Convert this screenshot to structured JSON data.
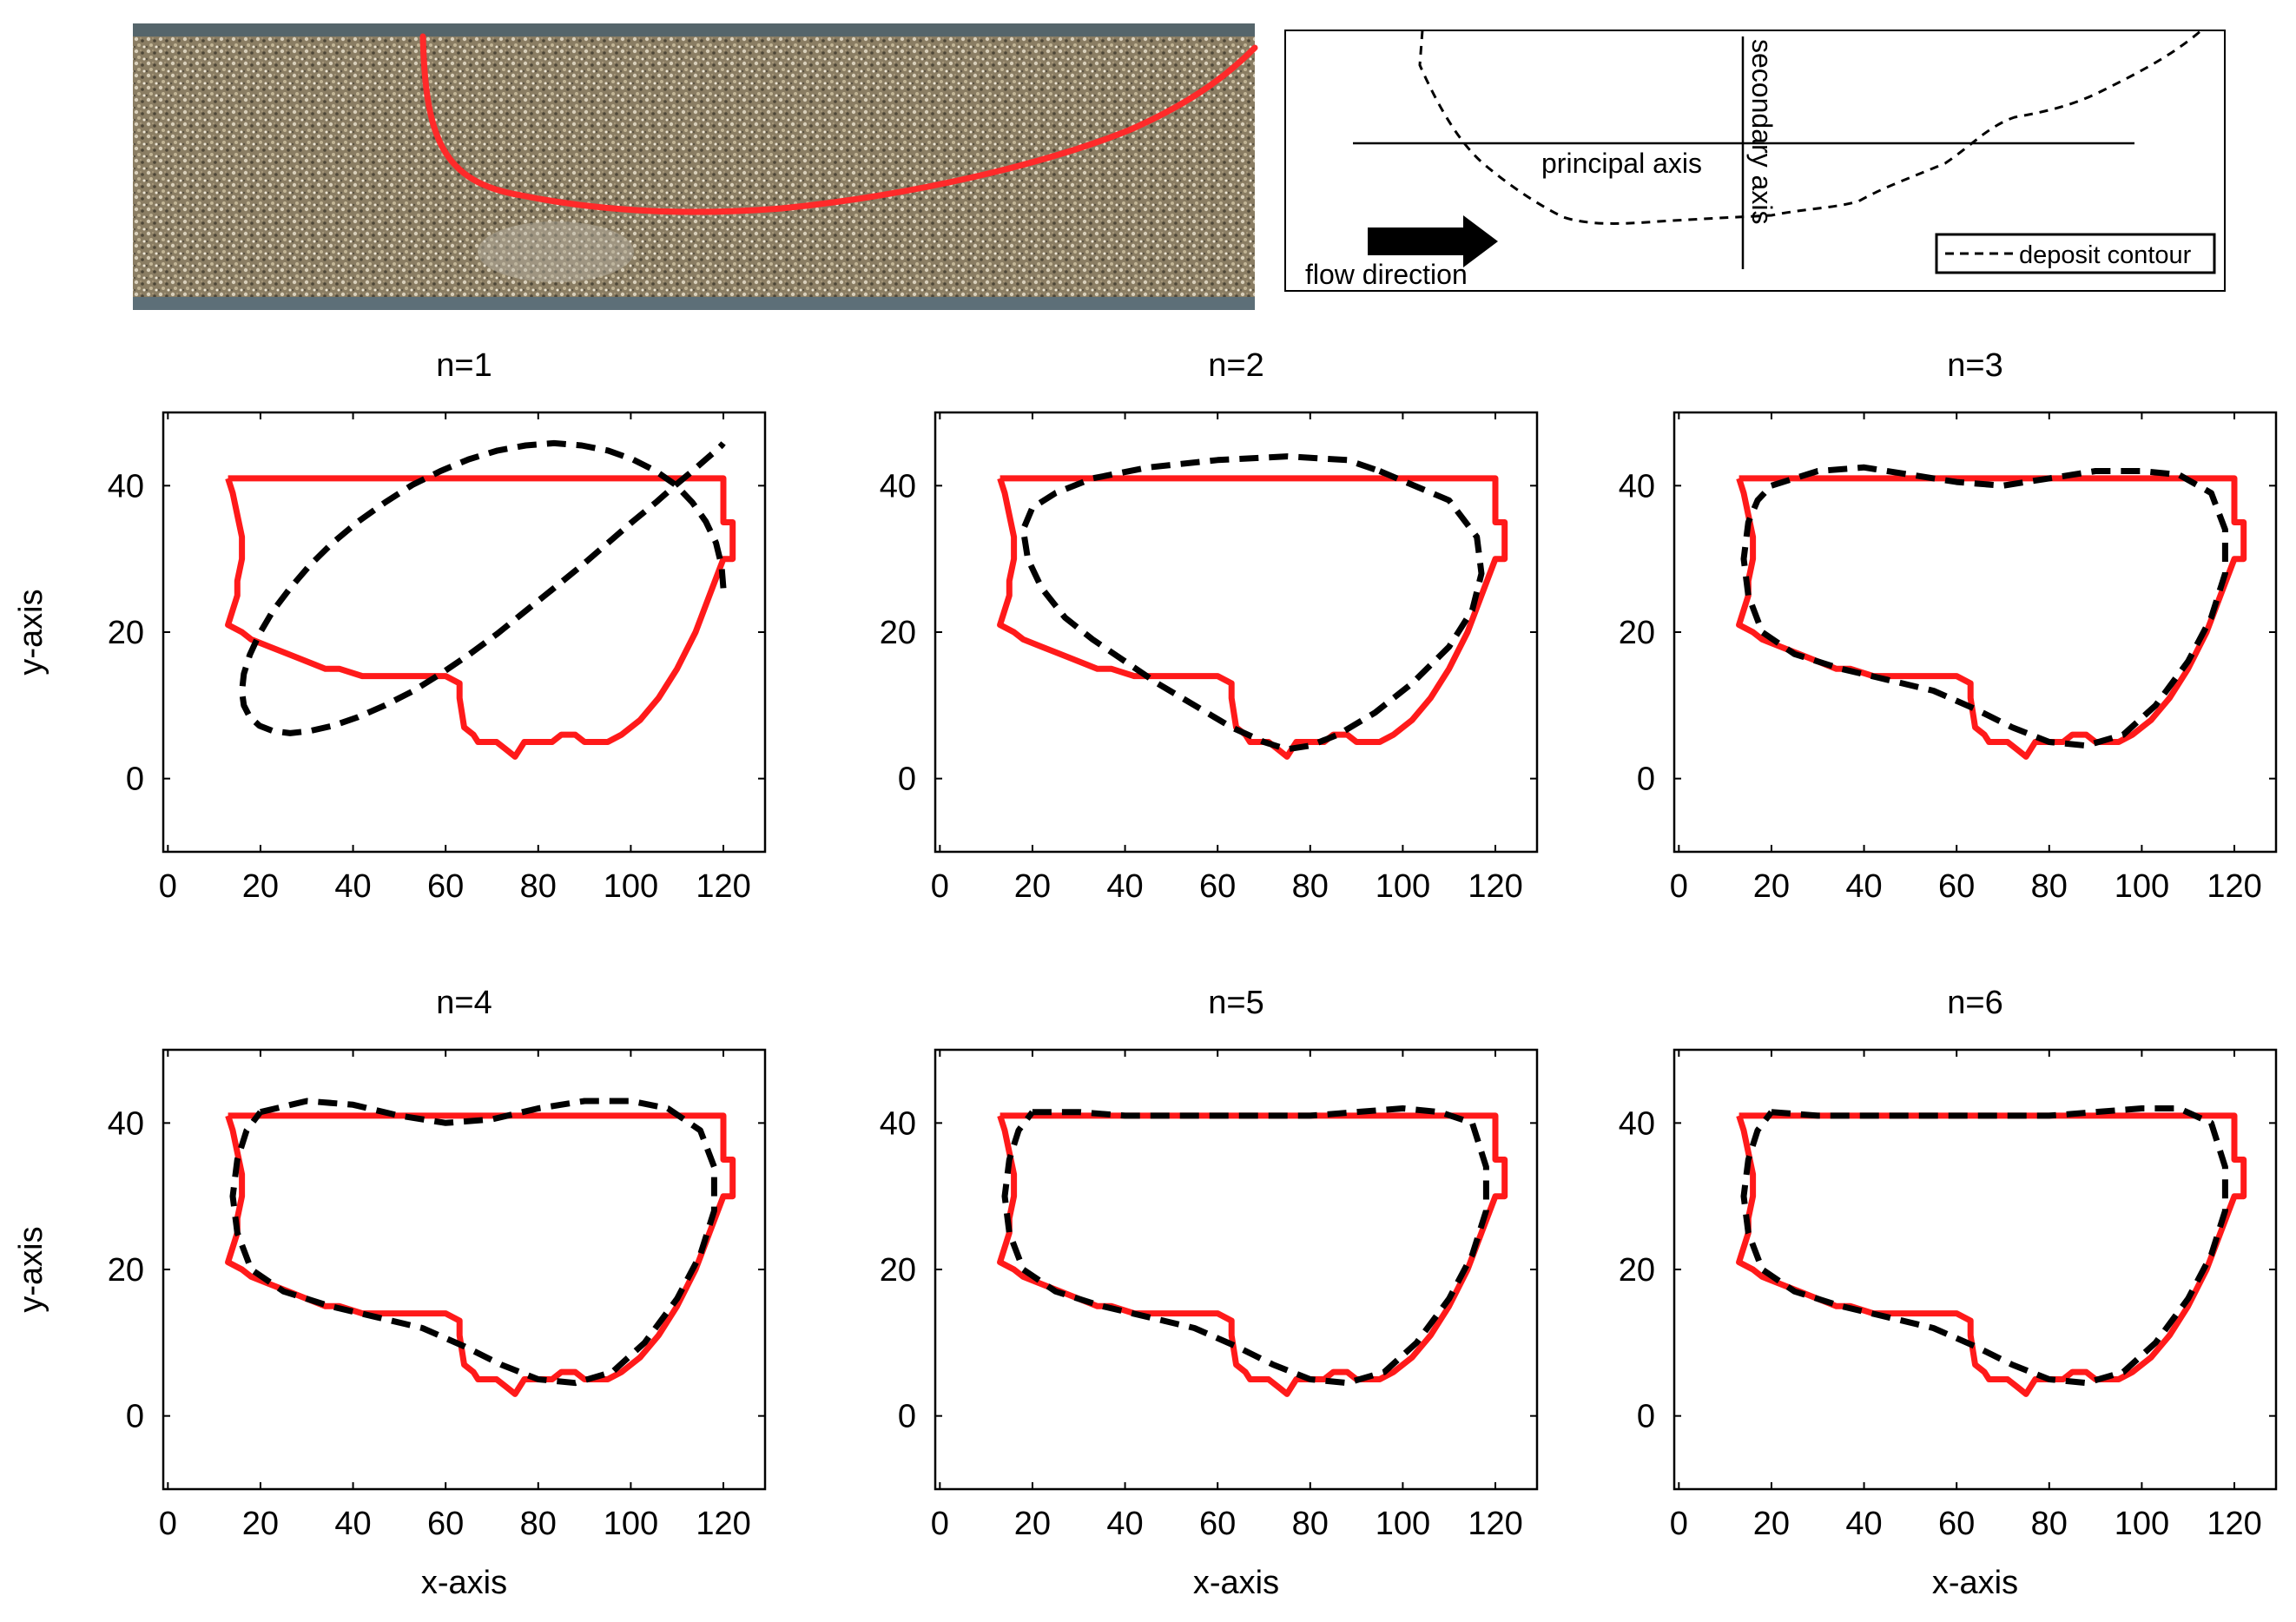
{
  "schematic": {
    "principal_axis_label": "principal axis",
    "secondary_axis_label": "secondary axis",
    "flow_label": "flow direction",
    "legend_label": "deposit contour"
  },
  "panel_titles": [
    "n=1",
    "n=2",
    "n=3",
    "n=4",
    "n=5",
    "n=6"
  ],
  "axes": {
    "xlabel": "x-axis",
    "ylabel": "y-axis",
    "x_ticks": [
      "0",
      "20",
      "40",
      "60",
      "80",
      "100",
      "120"
    ],
    "y_ticks": [
      "0",
      "20",
      "40"
    ]
  },
  "colors": {
    "deposit": "#ff1a1a",
    "fit": "#000000",
    "photo_contour": "#ff2a2a"
  },
  "chart_data": [
    {
      "type": "line",
      "title": "n=1",
      "xlabel": "",
      "ylabel": "y-axis",
      "xlim": [
        -1,
        129
      ],
      "ylim": [
        -10,
        50
      ],
      "grid": false,
      "series": [
        {
          "style": "solid-red",
          "x": [
            13,
            120,
            120,
            122,
            122,
            120,
            117,
            114,
            110,
            106,
            102,
            98,
            95,
            90,
            88,
            85,
            83,
            80,
            77,
            76,
            75,
            73,
            71,
            69,
            67,
            66,
            64,
            63,
            63,
            60,
            56,
            52,
            47,
            42,
            37,
            34,
            30,
            26,
            22,
            18,
            16,
            13,
            15,
            15,
            16,
            16,
            15,
            14,
            13
          ],
          "y": [
            41,
            41,
            35,
            35,
            30,
            30,
            25,
            20,
            15,
            11,
            8,
            6,
            5,
            5,
            6,
            6,
            5,
            5,
            5,
            4,
            3,
            4,
            5,
            5,
            5,
            6,
            7,
            11,
            13,
            14,
            14,
            14,
            14,
            14,
            15,
            15,
            16,
            17,
            18,
            19,
            20,
            21,
            25,
            27,
            30,
            33,
            36,
            39,
            41
          ]
        },
        {
          "style": "dashed-black",
          "x": [
            120,
            119.6,
            118.4,
            116.2,
            113.3,
            109.7,
            105.4,
            100.4,
            95.1,
            89.4,
            83.4,
            77.3,
            71.2,
            65,
            58.9,
            52.8,
            46.9,
            41.1,
            35.6,
            30.6,
            26.4,
            22.7,
            19.8,
            17.7,
            16.4,
            16,
            16.4,
            17.7,
            19.8,
            22.7,
            26.4,
            30.6,
            35.6,
            41.1,
            46.9,
            52.8,
            58.9,
            65,
            71.2,
            77.3,
            83.4,
            89.4,
            95.1,
            100.4,
            105.4,
            109.7,
            113.3,
            116.2,
            118.4,
            119.6,
            120
          ],
          "y": [
            26,
            29.1,
            32.2,
            35.1,
            37.7,
            40.1,
            42,
            43.6,
            44.8,
            45.5,
            45.8,
            45.5,
            44.8,
            43.6,
            42,
            40.1,
            37.7,
            35.1,
            32.2,
            29.1,
            26,
            22.9,
            19.8,
            16.9,
            14.3,
            11.9,
            10,
            8.4,
            7.2,
            6.5,
            6.2,
            6.5,
            7.2,
            8.4,
            10,
            11.9,
            14.3,
            16.9,
            19.8,
            22.9,
            26,
            29.1,
            32.2,
            35.1,
            37.7,
            40.1,
            42,
            43.6,
            44.8,
            45.5,
            45.8
          ]
        }
      ]
    },
    {
      "type": "line",
      "title": "n=2",
      "xlabel": "",
      "ylabel": "",
      "xlim": [
        -1,
        129
      ],
      "ylim": [
        -10,
        50
      ],
      "grid": false,
      "series": [
        {
          "style": "solid-red",
          "x": [
            13,
            120,
            120,
            122,
            122,
            120,
            117,
            114,
            110,
            106,
            102,
            98,
            95,
            90,
            88,
            85,
            83,
            80,
            77,
            76,
            75,
            73,
            71,
            69,
            67,
            66,
            64,
            63,
            63,
            60,
            56,
            52,
            47,
            42,
            37,
            34,
            30,
            26,
            22,
            18,
            16,
            13,
            15,
            15,
            16,
            16,
            15,
            14,
            13
          ],
          "y": [
            41,
            41,
            35,
            35,
            30,
            30,
            25,
            20,
            15,
            11,
            8,
            6,
            5,
            5,
            6,
            6,
            5,
            5,
            5,
            4,
            3,
            4,
            5,
            5,
            5,
            6,
            7,
            11,
            13,
            14,
            14,
            14,
            14,
            14,
            15,
            15,
            16,
            17,
            18,
            19,
            20,
            21,
            25,
            27,
            30,
            33,
            36,
            39,
            41
          ]
        },
        {
          "style": "dashed-black",
          "x": [
            95,
            110,
            116,
            117,
            115,
            110,
            102,
            94,
            86,
            80,
            75,
            70,
            63,
            55,
            47,
            40,
            33,
            27,
            22,
            19,
            18,
            20,
            25,
            33,
            45,
            60,
            75,
            88,
            95
          ],
          "y": [
            42,
            38,
            33,
            28,
            23,
            18,
            13,
            9,
            6,
            4.5,
            4,
            5,
            7,
            10,
            13,
            16,
            19,
            22,
            26,
            30,
            34,
            37,
            39,
            41,
            42.5,
            43.5,
            44,
            43.5,
            42
          ]
        }
      ]
    },
    {
      "type": "line",
      "title": "n=3",
      "xlabel": "",
      "ylabel": "",
      "xlim": [
        -1,
        129
      ],
      "ylim": [
        -10,
        50
      ],
      "grid": false,
      "series": [
        {
          "style": "solid-red",
          "x": [
            13,
            120,
            120,
            122,
            122,
            120,
            117,
            114,
            110,
            106,
            102,
            98,
            95,
            90,
            88,
            85,
            83,
            80,
            77,
            76,
            75,
            73,
            71,
            69,
            67,
            66,
            64,
            63,
            63,
            60,
            56,
            52,
            47,
            42,
            37,
            34,
            30,
            26,
            22,
            18,
            16,
            13,
            15,
            15,
            16,
            16,
            15,
            14,
            13
          ],
          "y": [
            41,
            41,
            35,
            35,
            30,
            30,
            25,
            20,
            15,
            11,
            8,
            6,
            5,
            5,
            6,
            6,
            5,
            5,
            5,
            4,
            3,
            4,
            5,
            5,
            5,
            6,
            7,
            11,
            13,
            14,
            14,
            14,
            14,
            14,
            15,
            15,
            16,
            17,
            18,
            19,
            20,
            21,
            25,
            27,
            30,
            33,
            36,
            39,
            41
          ]
        },
        {
          "style": "dashed-black",
          "x": [
            20,
            30,
            40,
            50,
            60,
            70,
            80,
            90,
            100,
            108,
            115,
            118,
            118,
            115,
            110,
            103,
            96,
            88,
            80,
            72,
            64,
            55,
            45,
            35,
            25,
            18,
            15,
            14,
            15,
            17,
            20
          ],
          "y": [
            40,
            42,
            42.5,
            41.5,
            40.5,
            40,
            41,
            42,
            42,
            41.5,
            39,
            34,
            28,
            22,
            16,
            10,
            6,
            4.5,
            5,
            7,
            9.5,
            12,
            13.5,
            15,
            17,
            20,
            25,
            30,
            35,
            38,
            40
          ]
        }
      ]
    },
    {
      "type": "line",
      "title": "n=4",
      "xlabel": "x-axis",
      "ylabel": "y-axis",
      "xlim": [
        -1,
        129
      ],
      "ylim": [
        -10,
        50
      ],
      "grid": false,
      "series": [
        {
          "style": "solid-red",
          "x": [
            13,
            120,
            120,
            122,
            122,
            120,
            117,
            114,
            110,
            106,
            102,
            98,
            95,
            90,
            88,
            85,
            83,
            80,
            77,
            76,
            75,
            73,
            71,
            69,
            67,
            66,
            64,
            63,
            63,
            60,
            56,
            52,
            47,
            42,
            37,
            34,
            30,
            26,
            22,
            18,
            16,
            13,
            15,
            15,
            16,
            16,
            15,
            14,
            13
          ],
          "y": [
            41,
            41,
            35,
            35,
            30,
            30,
            25,
            20,
            15,
            11,
            8,
            6,
            5,
            5,
            6,
            6,
            5,
            5,
            5,
            4,
            3,
            4,
            5,
            5,
            5,
            6,
            7,
            11,
            13,
            14,
            14,
            14,
            14,
            14,
            15,
            15,
            16,
            17,
            18,
            19,
            20,
            21,
            25,
            27,
            30,
            33,
            36,
            39,
            41
          ]
        },
        {
          "style": "dashed-black",
          "x": [
            20,
            30,
            40,
            50,
            60,
            70,
            80,
            90,
            100,
            108,
            115,
            118,
            118,
            115,
            110,
            103,
            96,
            88,
            80,
            72,
            64,
            55,
            45,
            35,
            25,
            18,
            15,
            14,
            15,
            17,
            20
          ],
          "y": [
            41.5,
            43,
            42.5,
            41,
            40,
            40.5,
            42,
            43,
            43,
            42,
            39,
            34,
            28,
            22,
            16,
            10,
            6,
            4.5,
            5,
            7,
            9.5,
            12,
            13.5,
            15,
            17,
            20,
            25,
            30,
            35,
            39,
            41.5
          ]
        }
      ]
    },
    {
      "type": "line",
      "title": "n=5",
      "xlabel": "x-axis",
      "ylabel": "",
      "xlim": [
        -1,
        129
      ],
      "ylim": [
        -10,
        50
      ],
      "grid": false,
      "series": [
        {
          "style": "solid-red",
          "x": [
            13,
            120,
            120,
            122,
            122,
            120,
            117,
            114,
            110,
            106,
            102,
            98,
            95,
            90,
            88,
            85,
            83,
            80,
            77,
            76,
            75,
            73,
            71,
            69,
            67,
            66,
            64,
            63,
            63,
            60,
            56,
            52,
            47,
            42,
            37,
            34,
            30,
            26,
            22,
            18,
            16,
            13,
            15,
            15,
            16,
            16,
            15,
            14,
            13
          ],
          "y": [
            41,
            41,
            35,
            35,
            30,
            30,
            25,
            20,
            15,
            11,
            8,
            6,
            5,
            5,
            6,
            6,
            5,
            5,
            5,
            4,
            3,
            4,
            5,
            5,
            5,
            6,
            7,
            11,
            13,
            14,
            14,
            14,
            14,
            14,
            15,
            15,
            16,
            17,
            18,
            19,
            20,
            21,
            25,
            27,
            30,
            33,
            36,
            39,
            41
          ]
        },
        {
          "style": "dashed-black",
          "x": [
            20,
            30,
            40,
            50,
            60,
            70,
            80,
            90,
            100,
            108,
            115,
            118,
            118,
            115,
            110,
            103,
            96,
            88,
            80,
            72,
            64,
            55,
            45,
            35,
            25,
            18,
            15,
            14,
            15,
            17,
            20
          ],
          "y": [
            41.5,
            41.5,
            41,
            41,
            41,
            41,
            41,
            41.5,
            42,
            41.5,
            40,
            34,
            28,
            22,
            16,
            10,
            6,
            4.5,
            5,
            7,
            9.5,
            12,
            13.5,
            15,
            17,
            20,
            25,
            30,
            35,
            39,
            41.5
          ]
        }
      ]
    },
    {
      "type": "line",
      "title": "n=6",
      "xlabel": "x-axis",
      "ylabel": "",
      "xlim": [
        -1,
        129
      ],
      "ylim": [
        -10,
        50
      ],
      "grid": false,
      "series": [
        {
          "style": "solid-red",
          "x": [
            13,
            120,
            120,
            122,
            122,
            120,
            117,
            114,
            110,
            106,
            102,
            98,
            95,
            90,
            88,
            85,
            83,
            80,
            77,
            76,
            75,
            73,
            71,
            69,
            67,
            66,
            64,
            63,
            63,
            60,
            56,
            52,
            47,
            42,
            37,
            34,
            30,
            26,
            22,
            18,
            16,
            13,
            15,
            15,
            16,
            16,
            15,
            14,
            13
          ],
          "y": [
            41,
            41,
            35,
            35,
            30,
            30,
            25,
            20,
            15,
            11,
            8,
            6,
            5,
            5,
            6,
            6,
            5,
            5,
            5,
            4,
            3,
            4,
            5,
            5,
            5,
            6,
            7,
            11,
            13,
            14,
            14,
            14,
            14,
            14,
            15,
            15,
            16,
            17,
            18,
            19,
            20,
            21,
            25,
            27,
            30,
            33,
            36,
            39,
            41
          ]
        },
        {
          "style": "dashed-black",
          "x": [
            20,
            30,
            40,
            50,
            60,
            70,
            80,
            90,
            100,
            108,
            115,
            118,
            118,
            115,
            110,
            103,
            96,
            88,
            80,
            72,
            64,
            55,
            45,
            35,
            25,
            18,
            15,
            14,
            15,
            17,
            20
          ],
          "y": [
            41.5,
            41,
            41,
            41,
            41,
            41,
            41,
            41.5,
            42,
            42,
            40,
            34,
            28,
            22,
            16,
            10,
            6,
            4.5,
            5,
            7,
            9.5,
            12,
            13.5,
            15,
            17,
            20,
            25,
            30,
            35,
            39,
            41.5
          ]
        }
      ]
    }
  ]
}
